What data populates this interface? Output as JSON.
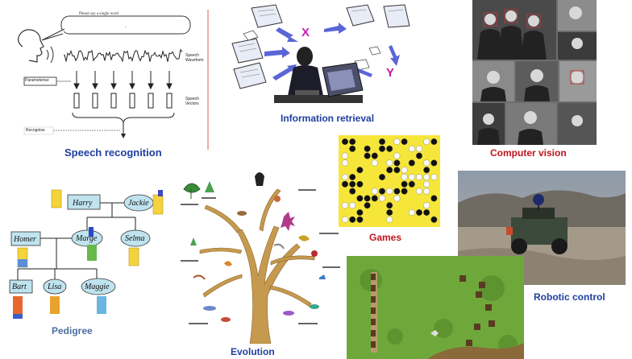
{
  "panels": {
    "speech": {
      "caption": "Speech recognition",
      "prompt": "Please say a single word",
      "waveform_label": "Speech Waveform",
      "vectors_label": "Speech Vectors",
      "param_label": "Parameterise",
      "recognise_label": "Recognise"
    },
    "information": {
      "caption": "Information retrieval",
      "x_label": "X",
      "y_label": "Y"
    },
    "vision": {
      "caption": "Computer vision"
    },
    "games": {
      "caption": "Games"
    },
    "robotic": {
      "caption": "Robotic control"
    },
    "pedigree": {
      "caption": "Pedigree",
      "names": [
        "Harry",
        "Jackie",
        "Homer",
        "Marge",
        "Selma",
        "Bart",
        "Lisa",
        "Maggie"
      ]
    },
    "evolution": {
      "caption": "Evolution"
    }
  },
  "colors": {
    "caption_blue": "#1f3fa0",
    "caption_red": "#c0141c",
    "caption_gray": "#2f4f7f",
    "info_x": "#d01bb3",
    "info_y": "#c21aa0",
    "node_fill": "#bfe3ef",
    "game_bg": "#f6e63a",
    "field_green": "#6fa83a",
    "tree_brown": "#c69a4e"
  }
}
